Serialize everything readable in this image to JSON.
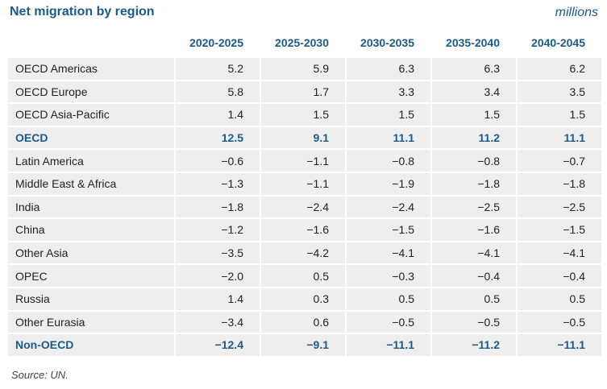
{
  "title": "Net migration by region",
  "units": "millions",
  "columns": [
    "2020-2025",
    "2025-2030",
    "2030-2035",
    "2035-2040",
    "2040-2045"
  ],
  "rows": [
    {
      "region": "OECD Americas",
      "values": [
        "5.2",
        "5.9",
        "6.3",
        "6.3",
        "6.2"
      ]
    },
    {
      "region": "OECD Europe",
      "values": [
        "5.8",
        "1.7",
        "3.3",
        "3.4",
        "3.5"
      ]
    },
    {
      "region": "OECD Asia-Pacific",
      "values": [
        "1.4",
        "1.5",
        "1.5",
        "1.5",
        "1.5"
      ]
    },
    {
      "region": "OECD",
      "values": [
        "12.5",
        "9.1",
        "11.1",
        "11.2",
        "11.1"
      ]
    },
    {
      "region": "Latin America",
      "values": [
        "−0.6",
        "−1.1",
        "−0.8",
        "−0.8",
        "−0.7"
      ]
    },
    {
      "region": "Middle East & Africa",
      "values": [
        "−1.3",
        "−1.1",
        "−1.9",
        "−1.8",
        "−1.8"
      ]
    },
    {
      "region": "India",
      "values": [
        "−1.8",
        "−2.4",
        "−2.4",
        "−2.5",
        "−2.5"
      ]
    },
    {
      "region": "China",
      "values": [
        "−1.2",
        "−1.6",
        "−1.5",
        "−1.6",
        "−1.5"
      ]
    },
    {
      "region": "Other Asia",
      "values": [
        "−3.5",
        "−4.2",
        "−4.1",
        "−4.1",
        "−4.1"
      ]
    },
    {
      "region": "OPEC",
      "values": [
        "−2.0",
        "0.5",
        "−0.3",
        "−0.4",
        "−0.4"
      ]
    },
    {
      "region": "Russia",
      "values": [
        "1.4",
        "0.3",
        "0.5",
        "0.5",
        "0.5"
      ]
    },
    {
      "region": "Other Eurasia",
      "values": [
        "−3.4",
        "0.6",
        "−0.5",
        "−0.5",
        "−0.5"
      ]
    },
    {
      "region": "Non-OECD",
      "values": [
        "−12.4",
        "−9.1",
        "−11.1",
        "−11.2",
        "−11.1"
      ]
    }
  ],
  "source": "Source: UN."
}
